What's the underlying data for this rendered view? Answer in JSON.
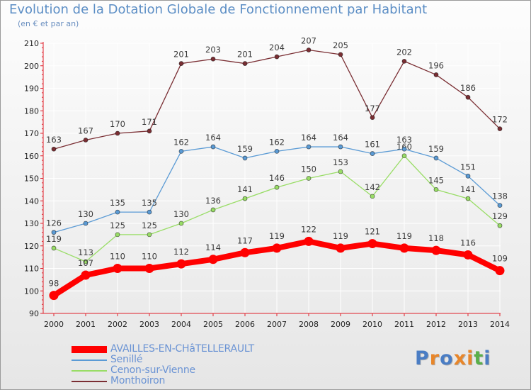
{
  "header": {
    "title": "Evolution de la Dotation Globale de Fonctionnement par Habitant",
    "subtitle": "(en € et par an)"
  },
  "logo": {
    "text": "Proxiti",
    "letter_colors": [
      "#4a7dc4",
      "#e8862a",
      "#4a7dc4",
      "#e8862a",
      "#e8862a",
      "#5aaf4a",
      "#4a7dc4"
    ]
  },
  "colors": {
    "axis": "#e0202a",
    "grid": "#ffffff"
  },
  "chart_data": {
    "type": "line",
    "title": "Evolution de la Dotation Globale de Fonctionnement par Habitant",
    "ylabel": "(en € et par an)",
    "xlabel": "",
    "ylim": [
      90,
      210
    ],
    "yticks": [
      90,
      100,
      110,
      120,
      130,
      140,
      150,
      160,
      170,
      180,
      190,
      200,
      210
    ],
    "grid": true,
    "legend_position": "bottom-left",
    "categories": [
      "2000",
      "2001",
      "2002",
      "2003",
      "2004",
      "2005",
      "2006",
      "2007",
      "2008",
      "2009",
      "2010",
      "2011",
      "2012",
      "2013",
      "2014"
    ],
    "series": [
      {
        "name": "AVAILLES-EN-CHâTELLERAULT",
        "color": "#ff0000",
        "emphasis": true,
        "values": [
          98,
          107,
          110,
          110,
          112,
          114,
          117,
          119,
          122,
          119,
          121,
          119,
          118,
          116,
          109
        ]
      },
      {
        "name": "Senillé",
        "color": "#5b9bd5",
        "emphasis": false,
        "values": [
          126,
          130,
          135,
          135,
          162,
          164,
          159,
          162,
          164,
          164,
          161,
          163,
          159,
          151,
          138
        ]
      },
      {
        "name": "Cenon-sur-Vienne",
        "color": "#99dd66",
        "emphasis": false,
        "values": [
          119,
          113,
          125,
          125,
          130,
          136,
          141,
          146,
          150,
          153,
          142,
          160,
          145,
          141,
          129
        ]
      },
      {
        "name": "Monthoiron",
        "color": "#7a2e33",
        "emphasis": false,
        "values": [
          163,
          167,
          170,
          171,
          201,
          203,
          201,
          204,
          207,
          205,
          177,
          202,
          196,
          186,
          172
        ]
      }
    ]
  }
}
